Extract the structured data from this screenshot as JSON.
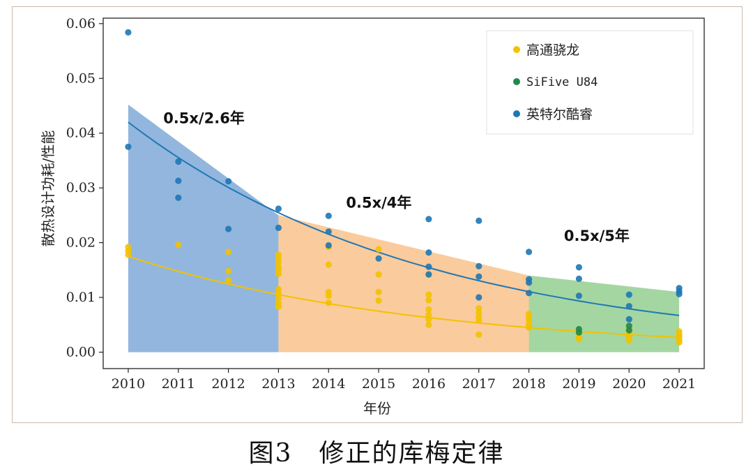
{
  "caption": "图3　修正的库梅定律",
  "chart_data": {
    "type": "scatter",
    "xlabel": "年份",
    "ylabel": "散热设计功耗/性能",
    "xlim": [
      2009.5,
      2021.5
    ],
    "ylim": [
      -0.003,
      0.061
    ],
    "xticks": [
      2010,
      2011,
      2012,
      2013,
      2014,
      2015,
      2016,
      2017,
      2018,
      2019,
      2020,
      2021
    ],
    "yticks": [
      0.0,
      0.01,
      0.02,
      0.03,
      0.04,
      0.05,
      0.06
    ],
    "ytick_labels": [
      "0.00",
      "0.01",
      "0.02",
      "0.03",
      "0.04",
      "0.05",
      "0.06"
    ],
    "legend": {
      "position": "top-right"
    },
    "series": [
      {
        "name": "高通骁龙",
        "color": "#f2c200",
        "points": [
          [
            2010,
            0.0192
          ],
          [
            2010,
            0.0185
          ],
          [
            2010,
            0.0178
          ],
          [
            2011,
            0.0196
          ],
          [
            2012,
            0.0183
          ],
          [
            2012,
            0.0148
          ],
          [
            2012,
            0.0131
          ],
          [
            2013,
            0.0178
          ],
          [
            2013,
            0.0172
          ],
          [
            2013,
            0.0165
          ],
          [
            2013,
            0.0156
          ],
          [
            2013,
            0.015
          ],
          [
            2013,
            0.0143
          ],
          [
            2013,
            0.0115
          ],
          [
            2013,
            0.0108
          ],
          [
            2013,
            0.0098
          ],
          [
            2013,
            0.009
          ],
          [
            2013,
            0.0083
          ],
          [
            2014,
            0.0192
          ],
          [
            2014,
            0.016
          ],
          [
            2014,
            0.011
          ],
          [
            2014,
            0.0103
          ],
          [
            2014,
            0.009
          ],
          [
            2015,
            0.0188
          ],
          [
            2015,
            0.0142
          ],
          [
            2015,
            0.011
          ],
          [
            2015,
            0.0094
          ],
          [
            2016,
            0.0142
          ],
          [
            2016,
            0.0105
          ],
          [
            2016,
            0.0095
          ],
          [
            2016,
            0.0078
          ],
          [
            2016,
            0.0068
          ],
          [
            2016,
            0.006
          ],
          [
            2016,
            0.005
          ],
          [
            2017,
            0.008
          ],
          [
            2017,
            0.0072
          ],
          [
            2017,
            0.0064
          ],
          [
            2017,
            0.0058
          ],
          [
            2017,
            0.0032
          ],
          [
            2018,
            0.007
          ],
          [
            2018,
            0.0064
          ],
          [
            2018,
            0.0058
          ],
          [
            2018,
            0.005
          ],
          [
            2018,
            0.0045
          ],
          [
            2019,
            0.004
          ],
          [
            2019,
            0.0034
          ],
          [
            2019,
            0.0028
          ],
          [
            2019,
            0.0024
          ],
          [
            2020,
            0.0045
          ],
          [
            2020,
            0.004
          ],
          [
            2020,
            0.0034
          ],
          [
            2020,
            0.003
          ],
          [
            2020,
            0.0026
          ],
          [
            2020,
            0.0022
          ],
          [
            2021,
            0.0038
          ],
          [
            2021,
            0.0032
          ],
          [
            2021,
            0.0027
          ],
          [
            2021,
            0.0022
          ],
          [
            2021,
            0.0018
          ]
        ]
      },
      {
        "name": "SiFive U84",
        "color": "#1e8a4c",
        "points": [
          [
            2019,
            0.0042
          ],
          [
            2019,
            0.0036
          ],
          [
            2020,
            0.0048
          ],
          [
            2020,
            0.004
          ]
        ]
      },
      {
        "name": "英特尔酷睿",
        "color": "#1f77b4",
        "points": [
          [
            2010,
            0.0584
          ],
          [
            2010,
            0.0375
          ],
          [
            2011,
            0.0348
          ],
          [
            2011,
            0.0313
          ],
          [
            2011,
            0.0282
          ],
          [
            2012,
            0.0312
          ],
          [
            2012,
            0.0225
          ],
          [
            2013,
            0.0262
          ],
          [
            2013,
            0.0227
          ],
          [
            2014,
            0.0249
          ],
          [
            2014,
            0.022
          ],
          [
            2014,
            0.0195
          ],
          [
            2015,
            0.0171
          ],
          [
            2016,
            0.0243
          ],
          [
            2016,
            0.0182
          ],
          [
            2016,
            0.0156
          ],
          [
            2016,
            0.0142
          ],
          [
            2017,
            0.024
          ],
          [
            2017,
            0.0157
          ],
          [
            2017,
            0.0138
          ],
          [
            2017,
            0.01
          ],
          [
            2018,
            0.0183
          ],
          [
            2018,
            0.0133
          ],
          [
            2018,
            0.0127
          ],
          [
            2018,
            0.0108
          ],
          [
            2019,
            0.0155
          ],
          [
            2019,
            0.0134
          ],
          [
            2019,
            0.0103
          ],
          [
            2020,
            0.0105
          ],
          [
            2020,
            0.0084
          ],
          [
            2020,
            0.006
          ],
          [
            2021,
            0.0117
          ],
          [
            2021,
            0.0111
          ],
          [
            2021,
            0.0106
          ]
        ]
      }
    ],
    "trend_lines": [
      {
        "series": "英特尔酷睿",
        "color": "#1f77b4",
        "start": [
          2010,
          0.042
        ],
        "end": [
          2021,
          0.0067
        ]
      },
      {
        "series": "高通骁龙",
        "color": "#f2c200",
        "start": [
          2010,
          0.0175
        ],
        "end": [
          2021,
          0.0027
        ]
      }
    ],
    "bands": [
      {
        "x_range": [
          2010,
          2013
        ],
        "top": [
          0.0452,
          0.025
        ],
        "color": "#4a86c8",
        "annotation": "0.5x/2.6年",
        "annotation_anchor": [
          2010.7,
          0.0418
        ]
      },
      {
        "x_range": [
          2013,
          2018
        ],
        "top": [
          0.025,
          0.014
        ],
        "color": "#f7a95a",
        "annotation": "0.5x/4年",
        "annotation_anchor": [
          2014.35,
          0.0264
        ]
      },
      {
        "x_range": [
          2018,
          2021
        ],
        "top": [
          0.014,
          0.011
        ],
        "color": "#67bb62",
        "annotation": "0.5x/5年",
        "annotation_anchor": [
          2018.7,
          0.0203
        ]
      }
    ]
  }
}
